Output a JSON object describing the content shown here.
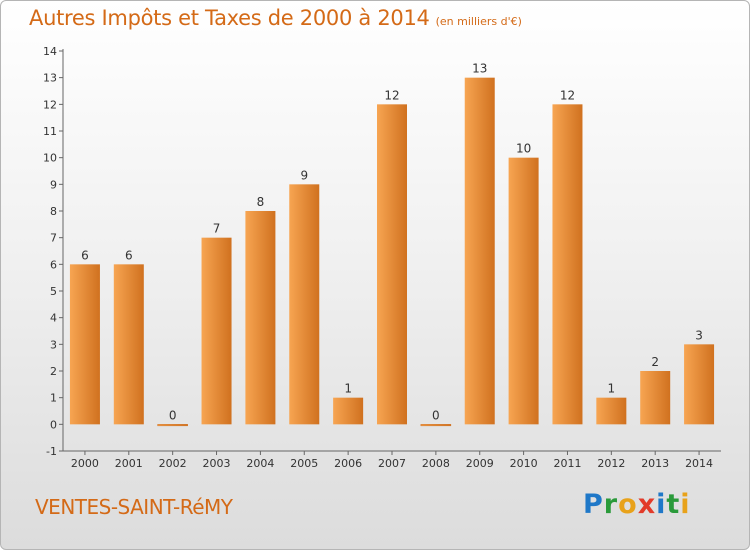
{
  "title": "Autres Impôts et Taxes de 2000 à 2014",
  "subtitle": "(en milliers d'€)",
  "commune": "VENTES-SAINT-RéMY",
  "logo": {
    "letters": [
      {
        "char": "P",
        "color": "#1f78c8"
      },
      {
        "char": "r",
        "color": "#2a9a3a"
      },
      {
        "char": "o",
        "color": "#e8a21a"
      },
      {
        "char": "x",
        "color": "#e23b2a"
      },
      {
        "char": "i",
        "color": "#1f78c8"
      },
      {
        "char": "t",
        "color": "#2a9a3a"
      },
      {
        "char": "i",
        "color": "#e8a21a"
      }
    ]
  },
  "colors": {
    "accent": "#d46a17",
    "bar_light": "#f7a552",
    "bar_dark": "#d0711f"
  },
  "chart_data": {
    "type": "bar",
    "categories": [
      "2000",
      "2001",
      "2002",
      "2003",
      "2004",
      "2005",
      "2006",
      "2007",
      "2008",
      "2009",
      "2010",
      "2011",
      "2012",
      "2013",
      "2014"
    ],
    "values": [
      6,
      6,
      0,
      7,
      8,
      9,
      1,
      12,
      0,
      13,
      10,
      12,
      1,
      2,
      3
    ],
    "data_labels": [
      "6",
      "6",
      "0",
      "7",
      "8",
      "9",
      "1",
      "12",
      "0",
      "13",
      "10",
      "12",
      "1",
      "2",
      "3"
    ],
    "ylim": [
      -1,
      14
    ],
    "yticks": [
      -1,
      0,
      1,
      2,
      3,
      4,
      5,
      6,
      7,
      8,
      9,
      10,
      11,
      12,
      13,
      14
    ],
    "ytick_labels": [
      "-1",
      "0",
      "1",
      "2",
      "3",
      "4",
      "5",
      "6",
      "7",
      "8",
      "9",
      "10",
      "11",
      "12",
      "13",
      "14"
    ],
    "grid": false,
    "legend": "none",
    "xlabel": "",
    "ylabel": ""
  }
}
